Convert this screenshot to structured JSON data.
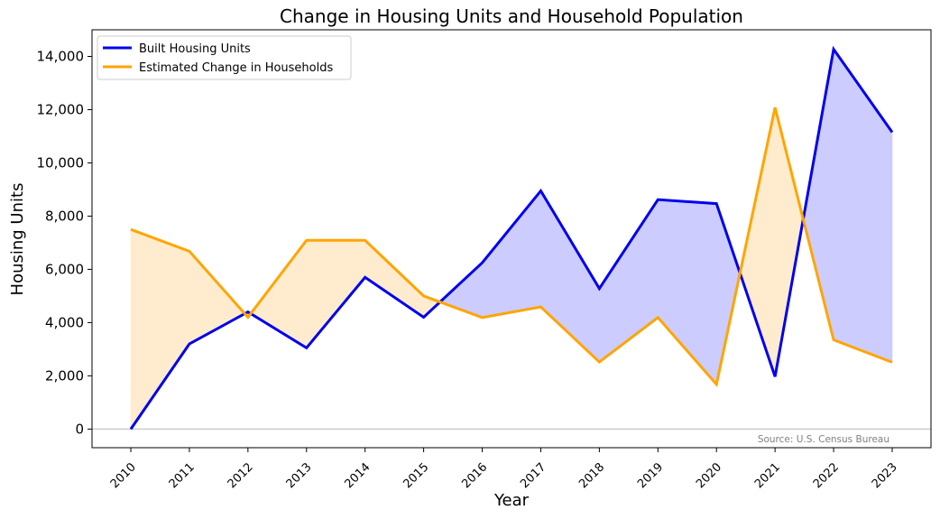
{
  "chart_data": {
    "type": "line",
    "title": "Change in Housing Units and Household Population",
    "xlabel": "Year",
    "ylabel": "Housing Units",
    "categories": [
      "2010",
      "2011",
      "2012",
      "2013",
      "2014",
      "2015",
      "2016",
      "2017",
      "2018",
      "2019",
      "2020",
      "2021",
      "2022",
      "2023"
    ],
    "series": [
      {
        "name": "Built Housing Units",
        "color": "#0000ee",
        "values": [
          0,
          3200,
          4400,
          3050,
          5700,
          4200,
          6250,
          8950,
          5280,
          8620,
          8470,
          1970,
          14270,
          11150
        ]
      },
      {
        "name": "Estimated Change in Households",
        "color": "#ffa500",
        "values": [
          7500,
          6680,
          4200,
          7090,
          7090,
          5000,
          4190,
          4590,
          2520,
          4190,
          1680,
          12080,
          3350,
          2510
        ]
      }
    ],
    "fill_colors": {
      "built_above": "#ccccff",
      "households_above": "#ffecce"
    },
    "ylim": [
      -700,
      15000
    ],
    "yticks": [
      0,
      2000,
      4000,
      6000,
      8000,
      10000,
      12000,
      14000
    ],
    "ytick_labels": [
      "0",
      "2,000",
      "4,000",
      "6,000",
      "8,000",
      "10,000",
      "12,000",
      "14,000"
    ],
    "zero_line_color": "#cccccc",
    "grid": false,
    "legend_position": "top-left",
    "source_note": "Source: U.S. Census Bureau"
  }
}
